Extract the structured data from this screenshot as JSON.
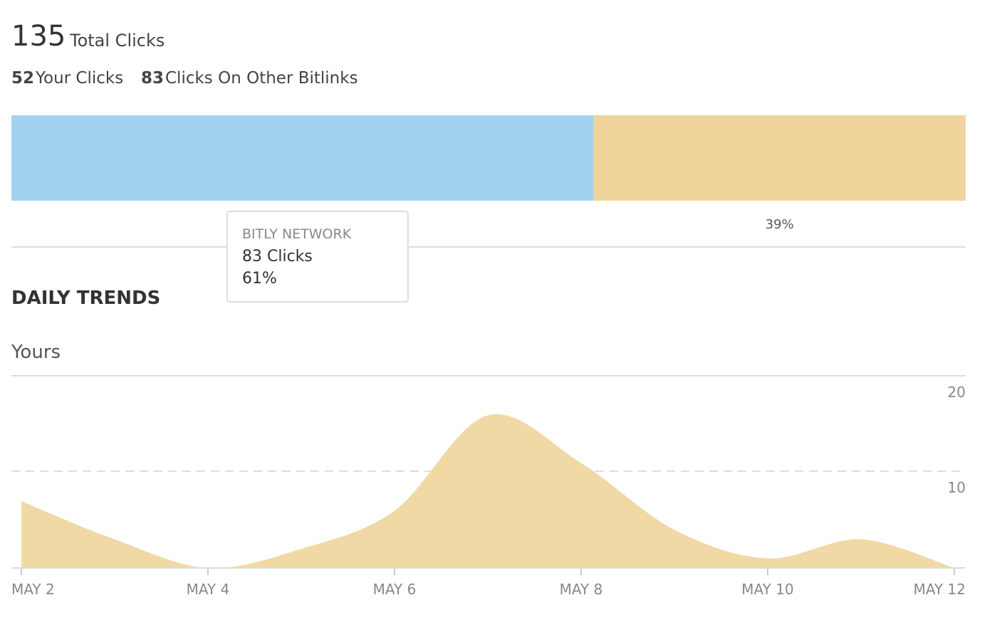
{
  "header": {
    "total": "135",
    "total_label": "Total Clicks",
    "your_count": "52",
    "your_label": "Your Clicks",
    "other_count": "83",
    "other_label": "Clicks On Other Bitlinks"
  },
  "tooltip": {
    "clicks": "83 Clicks"
  },
  "section_title": "DAILY TRENDS",
  "chart_data": [
    {
      "type": "stacked-bar",
      "xlim": [
        0,
        100
      ],
      "series": [
        {
          "name": "BITLY NETWORK",
          "color": "#a3d1f0",
          "values": [
            61
          ],
          "value_labels": [
            "61%"
          ]
        },
        {
          "color": "#f0d49b",
          "values": [
            39
          ],
          "value_labels": [
            "39%"
          ]
        }
      ]
    },
    {
      "type": "area",
      "title": "Yours",
      "categories": [
        "MAY 2",
        null,
        "MAY 4",
        null,
        "MAY 6",
        null,
        "MAY 8",
        null,
        "MAY 10",
        null,
        "MAY 12"
      ],
      "values": [
        7,
        3,
        0,
        2,
        6,
        16,
        11,
        4,
        1,
        3,
        0
      ],
      "color": "#f0d9a5",
      "ylim": [
        0,
        20
      ],
      "yticks": [
        10,
        20
      ],
      "grid": true
    }
  ]
}
